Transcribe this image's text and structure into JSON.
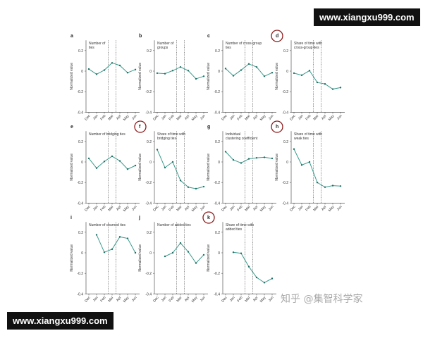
{
  "watermarks": {
    "top": "www.xiangxu999.com",
    "bottom": "www.xiangxu999.com",
    "zhihu": "知乎 @集智科学家"
  },
  "colors": {
    "line": "#3a9a8c",
    "marker": "#1f6f64",
    "highlight_circle": "#8b1a1a"
  },
  "chart_data": [
    {
      "panel": "a",
      "type": "line",
      "title": [
        "Number of",
        "ties"
      ],
      "highlight": false,
      "categories": [
        "Dec",
        "Jan",
        "Feb",
        "Mar",
        "Apr",
        "May",
        "Jun"
      ],
      "values": [
        0.02,
        -0.03,
        0.01,
        0.08,
        0.055,
        -0.015,
        0.015
      ],
      "ylabel": "Normalized value",
      "ylim": [
        -0.4,
        0.3
      ],
      "yticks": [
        0.2,
        0,
        -0.2,
        -0.4
      ]
    },
    {
      "panel": "b",
      "type": "line",
      "title": [
        "Number of",
        "groups"
      ],
      "highlight": false,
      "categories": [
        "Dec",
        "Jan",
        "Feb",
        "Mar",
        "Apr",
        "May",
        "Jun"
      ],
      "values": [
        -0.02,
        -0.025,
        0.005,
        0.04,
        0.005,
        -0.075,
        -0.05
      ],
      "ylabel": "Normalized value",
      "ylim": [
        -0.4,
        0.3
      ],
      "yticks": [
        0.2,
        0,
        -0.2,
        -0.4
      ]
    },
    {
      "panel": "c",
      "type": "line",
      "title": [
        "Number of cross-group",
        "ties"
      ],
      "highlight": false,
      "categories": [
        "Dec",
        "Jan",
        "Feb",
        "Mar",
        "Apr",
        "May",
        "Jun"
      ],
      "values": [
        0.025,
        -0.045,
        0.01,
        0.07,
        0.04,
        -0.05,
        -0.015
      ],
      "ylabel": "Normalized value",
      "ylim": [
        -0.4,
        0.3
      ],
      "yticks": [
        0.2,
        0,
        -0.2,
        -0.4
      ]
    },
    {
      "panel": "d",
      "type": "line",
      "title": [
        "Share of time with",
        "cross-group ties"
      ],
      "highlight": true,
      "categories": [
        "Dec",
        "Jan",
        "Feb",
        "Mar",
        "Apr",
        "May",
        "Jun"
      ],
      "values": [
        -0.02,
        -0.04,
        0.005,
        -0.11,
        -0.125,
        -0.175,
        -0.16
      ],
      "ylabel": "Normalized value",
      "ylim": [
        -0.4,
        0.3
      ],
      "yticks": [
        0.2,
        0,
        -0.2,
        -0.4
      ]
    },
    {
      "panel": "e",
      "type": "line",
      "title": [
        "Number of bridging ties"
      ],
      "highlight": false,
      "categories": [
        "Dec",
        "Jan",
        "Feb",
        "Mar",
        "Apr",
        "May",
        "Jun"
      ],
      "values": [
        0.035,
        -0.06,
        0.005,
        0.055,
        0.01,
        -0.07,
        -0.035
      ],
      "ylabel": "Normalized value",
      "ylim": [
        -0.4,
        0.3
      ],
      "yticks": [
        0.2,
        0,
        -0.2,
        -0.4
      ]
    },
    {
      "panel": "f",
      "type": "line",
      "title": [
        "Share of time with",
        "bridging ties"
      ],
      "highlight": true,
      "categories": [
        "Dec",
        "Jan",
        "Feb",
        "Mar",
        "Apr",
        "May",
        "Jun"
      ],
      "values": [
        0.12,
        -0.055,
        0,
        -0.18,
        -0.245,
        -0.26,
        -0.24
      ],
      "ylabel": "Normalized value",
      "ylim": [
        -0.4,
        0.3
      ],
      "yticks": [
        0.2,
        0,
        -0.2,
        -0.4
      ]
    },
    {
      "panel": "g",
      "type": "line",
      "title": [
        "Individual",
        "clustering coefficient"
      ],
      "highlight": false,
      "categories": [
        "Dec",
        "Jan",
        "Feb",
        "Mar",
        "Apr",
        "May",
        "Jun"
      ],
      "values": [
        0.1,
        0.02,
        -0.01,
        0.03,
        0.04,
        0.045,
        0.035
      ],
      "ylabel": "Normalized value",
      "ylim": [
        -0.4,
        0.3
      ],
      "yticks": [
        0.2,
        0,
        -0.2,
        -0.4
      ]
    },
    {
      "panel": "h",
      "type": "line",
      "title": [
        "Share of time with",
        "weak ties"
      ],
      "highlight": true,
      "categories": [
        "Dec",
        "Jan",
        "Feb",
        "Mar",
        "Apr",
        "May",
        "Jun"
      ],
      "values": [
        0.125,
        -0.03,
        0,
        -0.2,
        -0.245,
        -0.23,
        -0.235
      ],
      "ylabel": "Normalized value",
      "ylim": [
        -0.4,
        0.3
      ],
      "yticks": [
        0.2,
        0,
        -0.2,
        -0.4
      ]
    },
    {
      "panel": "i",
      "type": "line",
      "title": [
        "Number of churned ties"
      ],
      "highlight": false,
      "categories": [
        "Dec",
        "Jan",
        "Feb",
        "Mar",
        "Apr",
        "May",
        "Jun"
      ],
      "values": [
        null,
        0.175,
        0.005,
        0.035,
        0.155,
        0.14,
        0
      ],
      "ylabel": "Normalized value",
      "ylim": [
        -0.4,
        0.3
      ],
      "yticks": [
        0.2,
        0,
        -0.2,
        -0.4
      ]
    },
    {
      "panel": "j",
      "type": "line",
      "title": [
        "Number of added ties"
      ],
      "highlight": false,
      "categories": [
        "Dec",
        "Jan",
        "Feb",
        "Mar",
        "Apr",
        "May",
        "Jun"
      ],
      "values": [
        null,
        -0.035,
        0,
        0.095,
        0.01,
        -0.1,
        -0.02
      ],
      "ylabel": "Normalized value",
      "ylim": [
        -0.4,
        0.3
      ],
      "yticks": [
        0.2,
        0,
        -0.2,
        -0.4
      ]
    },
    {
      "panel": "k",
      "type": "line",
      "title": [
        "Share of time with",
        "added ties"
      ],
      "highlight": true,
      "categories": [
        "Dec",
        "Jan",
        "Feb",
        "Mar",
        "Apr",
        "May",
        "Jun"
      ],
      "values": [
        null,
        0.005,
        -0.005,
        -0.135,
        -0.24,
        -0.29,
        -0.25
      ],
      "ylabel": "Normalized value",
      "ylim": [
        -0.4,
        0.3
      ],
      "yticks": [
        0.2,
        0,
        -0.2,
        -0.4
      ]
    }
  ]
}
